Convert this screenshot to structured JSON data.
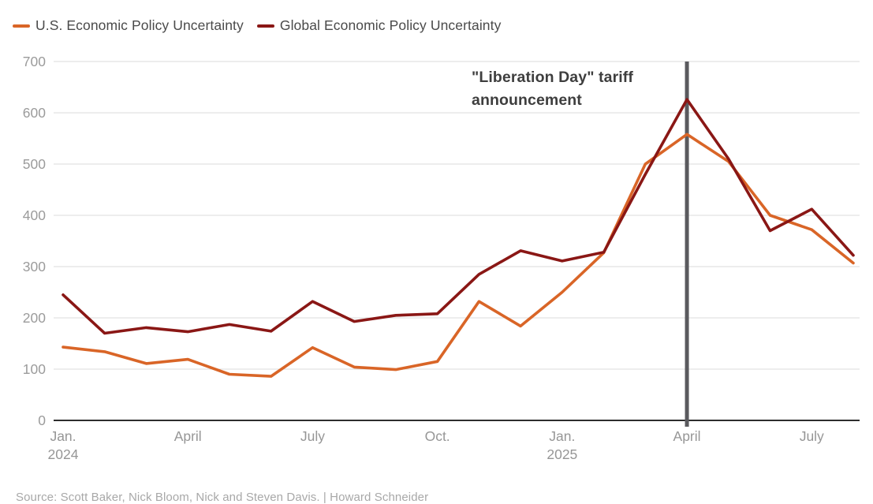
{
  "page": {
    "background": "#ffffff"
  },
  "legend": {
    "items": [
      {
        "label": "U.S. Economic Policy Uncertainty",
        "color": "#D96527"
      },
      {
        "label": "Global Economic Policy Uncertainty",
        "color": "#8A1715"
      }
    ]
  },
  "annotation": {
    "line1": "\"Liberation Day\" tariff",
    "line2": "announcement"
  },
  "source_note": "Source: Scott Baker, Nick Bloom, Nick and Steven Davis. | Howard Schneider",
  "chart_data": {
    "type": "line",
    "title": "",
    "xlabel": "",
    "ylabel": "",
    "ylim": [
      0,
      700
    ],
    "grid": true,
    "legend_position": "top-left",
    "y_ticks": [
      0,
      100,
      200,
      300,
      400,
      500,
      600,
      700
    ],
    "x": [
      "Jan. 2024",
      "Feb. 2024",
      "Mar. 2024",
      "Apr. 2024",
      "May 2024",
      "Jun. 2024",
      "Jul. 2024",
      "Aug. 2024",
      "Sep. 2024",
      "Oct. 2024",
      "Nov. 2024",
      "Dec. 2024",
      "Jan. 2025",
      "Feb. 2025",
      "Mar. 2025",
      "Apr. 2025",
      "May 2025",
      "Jun. 2025",
      "Jul. 2025",
      "Aug. 2025"
    ],
    "x_ticks": [
      {
        "index": 0,
        "label": "Jan.",
        "sublabel": "2024"
      },
      {
        "index": 3,
        "label": "April",
        "sublabel": ""
      },
      {
        "index": 6,
        "label": "July",
        "sublabel": ""
      },
      {
        "index": 9,
        "label": "Oct.",
        "sublabel": ""
      },
      {
        "index": 12,
        "label": "Jan.",
        "sublabel": "2025"
      },
      {
        "index": 15,
        "label": "April",
        "sublabel": ""
      },
      {
        "index": 18,
        "label": "July",
        "sublabel": ""
      }
    ],
    "series": [
      {
        "name": "U.S. Economic Policy Uncertainty",
        "color": "#D96527",
        "values": [
          143,
          134,
          111,
          119,
          90,
          86,
          142,
          104,
          99,
          115,
          232,
          184,
          250,
          327,
          500,
          558,
          505,
          400,
          372,
          307
        ]
      },
      {
        "name": "Global Economic Policy Uncertainty",
        "color": "#8A1715",
        "values": [
          245,
          170,
          181,
          173,
          187,
          174,
          232,
          193,
          205,
          208,
          285,
          331,
          311,
          328,
          480,
          626,
          510,
          370,
          412,
          322
        ]
      }
    ],
    "event_line": {
      "x_index": 15,
      "color": "#5A5A5E",
      "label": "\"Liberation Day\" tariff announcement"
    },
    "colors": {
      "gridline": "#DBDBDB",
      "zero_axis": "#2E2E2E",
      "tick_label": "#9B9B9B"
    }
  }
}
